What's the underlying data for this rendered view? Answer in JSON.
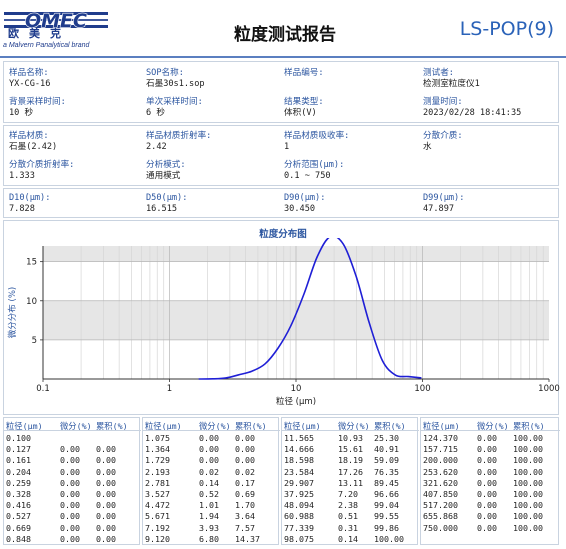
{
  "header": {
    "logo_text": "OMEC",
    "logo_cn": "欧美克",
    "logo_sub": "a Malvern Panalytical brand",
    "title": "粒度测试报告",
    "code": "LS-POP(9)"
  },
  "info": {
    "sample_name_label": "样品名称:",
    "sample_name": "YX-CG-16",
    "sop_label": "SOP名称:",
    "sop": "石墨30s1.sop",
    "sample_no_label": "样品编号:",
    "sample_no": "",
    "tester_label": "测试者:",
    "tester": "检测室粒度仪1",
    "bg_time_label": "背景采样时间:",
    "bg_time": "10 秒",
    "single_time_label": "单次采样时间:",
    "single_time": "6 秒",
    "result_type_label": "结果类型:",
    "result_type": "体积(V)",
    "measure_time_label": "测量时间:",
    "measure_time": "2023/02/28 18:41:35"
  },
  "material": {
    "material_label": "样品材质:",
    "material": "石墨(2.42)",
    "ri_label": "样品材质折射率:",
    "ri": "2.42",
    "abs_label": "样品材质吸收率:",
    "abs": "1",
    "medium_label": "分散介质:",
    "medium": "水",
    "medium_ri_label": "分散介质折射率:",
    "medium_ri": "1.333",
    "mode_label": "分析模式:",
    "mode": "通用模式",
    "range_label": "分析范围(μm):",
    "range": "0.1 ~ 750"
  },
  "dvalues": {
    "d10_label": "D10(μm):",
    "d10": "7.828",
    "d50_label": "D50(μm):",
    "d50": "16.515",
    "d90_label": "D90(μm):",
    "d90": "30.450",
    "d99_label": "D99(μm):",
    "d99": "47.897"
  },
  "chart_data": {
    "type": "line",
    "title": "粒度分布图",
    "xlabel": "粒径 (μm)",
    "ylabel": "微分分布 (%)",
    "xscale": "log",
    "xlim": [
      0.1,
      1000
    ],
    "ylim": [
      0,
      17
    ],
    "x_ticks": [
      "0.1",
      "1",
      "10",
      "100",
      "1000"
    ],
    "y_ticks": [
      "5",
      "10",
      "15"
    ],
    "line_color": "#1f1fd6",
    "grid": true,
    "shaded_bands": [
      [
        5,
        10
      ],
      [
        15,
        17
      ]
    ],
    "series": [
      {
        "x": [
          1.7,
          2.2,
          2.8,
          3.5,
          4.5,
          5.7,
          7.2,
          9.1,
          11.6,
          14.7,
          18.6,
          23.6,
          29.9,
          37.9,
          48.1,
          61.0,
          77.3,
          98.1
        ],
        "values": [
          0.0,
          0.02,
          0.14,
          0.52,
          1.01,
          1.94,
          3.93,
          6.8,
          10.93,
          15.61,
          18.19,
          17.26,
          13.11,
          7.2,
          2.38,
          0.51,
          0.31,
          0.14
        ]
      }
    ]
  },
  "table": {
    "headers": [
      "粒径(μm)",
      "微分(%)",
      "累积(%)"
    ],
    "columns": [
      [
        [
          "0.100",
          "",
          ""
        ],
        [
          "0.127",
          "0.00",
          "0.00"
        ],
        [
          "0.161",
          "0.00",
          "0.00"
        ],
        [
          "0.204",
          "0.00",
          "0.00"
        ],
        [
          "0.259",
          "0.00",
          "0.00"
        ],
        [
          "0.328",
          "0.00",
          "0.00"
        ],
        [
          "0.416",
          "0.00",
          "0.00"
        ],
        [
          "0.527",
          "0.00",
          "0.00"
        ],
        [
          "0.669",
          "0.00",
          "0.00"
        ],
        [
          "0.848",
          "0.00",
          "0.00"
        ]
      ],
      [
        [
          "1.075",
          "0.00",
          "0.00"
        ],
        [
          "1.364",
          "0.00",
          "0.00"
        ],
        [
          "1.729",
          "0.00",
          "0.00"
        ],
        [
          "2.193",
          "0.02",
          "0.02"
        ],
        [
          "2.781",
          "0.14",
          "0.17"
        ],
        [
          "3.527",
          "0.52",
          "0.69"
        ],
        [
          "4.472",
          "1.01",
          "1.70"
        ],
        [
          "5.671",
          "1.94",
          "3.64"
        ],
        [
          "7.192",
          "3.93",
          "7.57"
        ],
        [
          "9.120",
          "6.80",
          "14.37"
        ]
      ],
      [
        [
          "11.565",
          "10.93",
          "25.30"
        ],
        [
          "14.666",
          "15.61",
          "40.91"
        ],
        [
          "18.598",
          "18.19",
          "59.09"
        ],
        [
          "23.584",
          "17.26",
          "76.35"
        ],
        [
          "29.907",
          "13.11",
          "89.45"
        ],
        [
          "37.925",
          "7.20",
          "96.66"
        ],
        [
          "48.094",
          "2.38",
          "99.04"
        ],
        [
          "60.988",
          "0.51",
          "99.55"
        ],
        [
          "77.339",
          "0.31",
          "99.86"
        ],
        [
          "98.075",
          "0.14",
          "100.00"
        ]
      ],
      [
        [
          "124.370",
          "0.00",
          "100.00"
        ],
        [
          "157.715",
          "0.00",
          "100.00"
        ],
        [
          "200.000",
          "0.00",
          "100.00"
        ],
        [
          "253.620",
          "0.00",
          "100.00"
        ],
        [
          "321.620",
          "0.00",
          "100.00"
        ],
        [
          "407.850",
          "0.00",
          "100.00"
        ],
        [
          "517.200",
          "0.00",
          "100.00"
        ],
        [
          "655.868",
          "0.00",
          "100.00"
        ],
        [
          "750.000",
          "0.00",
          "100.00"
        ],
        [
          "",
          "",
          ""
        ]
      ]
    ]
  }
}
